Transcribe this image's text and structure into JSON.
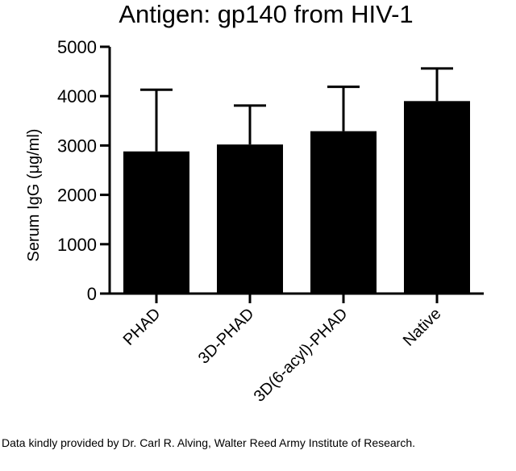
{
  "chart_data": {
    "type": "bar",
    "title": "Antigen: gp140 from HIV-1",
    "ylabel": "Serum IgG (μg/ml)",
    "xlabel": "",
    "categories": [
      "PHAD",
      "3D-PHAD",
      "3D(6-acyl)-PHAD",
      "Native"
    ],
    "values": [
      2880,
      3020,
      3290,
      3900
    ],
    "error_upper": [
      4130,
      3810,
      4190,
      4560
    ],
    "ylim": [
      0,
      5000
    ],
    "yticks": [
      0,
      1000,
      2000,
      3000,
      4000,
      5000
    ],
    "bar_color": "#000000",
    "grid": false,
    "legend": "none"
  },
  "credit": "Data kindly provided by Dr. Carl R. Alving, Walter Reed Army Institute of Research."
}
